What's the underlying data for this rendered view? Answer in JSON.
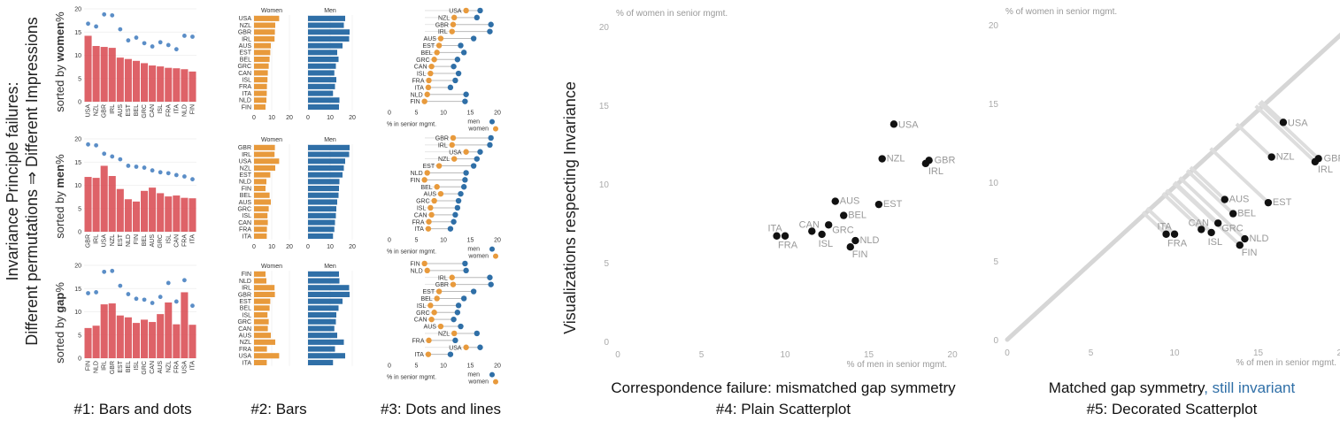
{
  "left_title": {
    "line1": "Invariance Principle failures:",
    "line2": "Different permutations ⇒ Different Impressions"
  },
  "row_labels": [
    {
      "prefix": "sorted by ",
      "bold": "women",
      "suffix": "%"
    },
    {
      "prefix": "sorted by ",
      "bold": "men",
      "suffix": "%"
    },
    {
      "prefix": "sorted by ",
      "bold": "gap",
      "suffix": "%"
    }
  ],
  "scatter_ylabel": "Visualizations respecting Invariance",
  "captions": {
    "c1": "#1: Bars and dots",
    "c2": "#2: Bars",
    "c3": "#3: Dots and lines",
    "c4_top": "Correspondence failure: mismatched gap symmetry",
    "c4_bottom": "#4: Plain Scatterplot",
    "c5_top_a": "Matched gap symmetry",
    "c5_top_b": ", still invariant",
    "c5_bottom": "#5: Decorated Scatterplot"
  },
  "small_labels": {
    "women": "Women",
    "men": "Men",
    "senior": "% in senior mgmt.",
    "legend_men": "men",
    "legend_women": "women"
  },
  "colors": {
    "women_bar": "#e89a3c",
    "men_bar": "#2f6fa7",
    "red_bar": "#d8474e",
    "blue_dot": "#5b8ec7",
    "scatter_point": "#111111",
    "diagonal": "#d6d6d6"
  },
  "chart_data": [
    {
      "type": "bar",
      "id": "bars-and-dots",
      "title": "#1: Bars and dots",
      "ylim": [
        0,
        20
      ],
      "yticks": [
        0,
        5,
        10,
        15,
        20
      ],
      "panels": [
        {
          "sort": "women",
          "categories": [
            "USA",
            "NZL",
            "GBR",
            "IRL",
            "AUS",
            "EST",
            "BEL",
            "GRC",
            "CAN",
            "ISL",
            "FRA",
            "ITA",
            "NLD",
            "FIN"
          ],
          "women": [
            14.2,
            12.0,
            11.8,
            11.6,
            9.5,
            9.2,
            8.8,
            8.3,
            7.8,
            7.6,
            7.3,
            7.2,
            7.0,
            6.5
          ],
          "men": [
            16.8,
            16.2,
            18.8,
            18.6,
            15.6,
            13.2,
            13.8,
            12.6,
            11.9,
            12.8,
            12.2,
            11.3,
            14.2,
            14.0
          ]
        },
        {
          "sort": "men",
          "categories": [
            "GBR",
            "IRL",
            "USA",
            "NZL",
            "EST",
            "NLD",
            "FIN",
            "BEL",
            "AUS",
            "GRC",
            "ISL",
            "CAN",
            "FRA",
            "ITA"
          ],
          "women": [
            11.8,
            11.6,
            14.2,
            12.0,
            9.2,
            7.0,
            6.5,
            8.8,
            9.5,
            8.3,
            7.6,
            7.8,
            7.3,
            7.2
          ],
          "men": [
            18.8,
            18.6,
            16.8,
            16.2,
            15.6,
            14.2,
            14.0,
            13.8,
            13.2,
            12.8,
            12.6,
            12.2,
            11.9,
            11.3
          ]
        },
        {
          "sort": "gap",
          "categories": [
            "FIN",
            "NLD",
            "IRL",
            "GBR",
            "EST",
            "BEL",
            "ISL",
            "GRC",
            "CAN",
            "AUS",
            "NZL",
            "FRA",
            "USA",
            "ITA"
          ],
          "women": [
            6.5,
            7.0,
            11.6,
            11.8,
            9.2,
            8.8,
            7.6,
            8.3,
            7.8,
            9.5,
            12.0,
            7.3,
            14.2,
            7.2
          ],
          "men": [
            14.0,
            14.2,
            18.6,
            18.8,
            15.6,
            13.8,
            12.8,
            12.6,
            11.9,
            13.2,
            16.2,
            12.2,
            16.8,
            11.3
          ]
        }
      ]
    },
    {
      "type": "bar",
      "id": "bars",
      "title": "#2: Bars",
      "xlim_women": [
        0,
        20
      ],
      "xlim_men": [
        0,
        20
      ],
      "xticks": [
        0,
        10,
        20
      ],
      "series": [
        {
          "name": "Women"
        },
        {
          "name": "Men"
        }
      ],
      "panels": [
        {
          "categories": [
            "USA",
            "NZL",
            "GBR",
            "IRL",
            "AUS",
            "EST",
            "BEL",
            "GRC",
            "CAN",
            "ISL",
            "FRA",
            "ITA",
            "NLD",
            "FIN"
          ],
          "women": [
            14.2,
            12.0,
            11.8,
            11.6,
            9.5,
            9.2,
            8.8,
            8.3,
            7.8,
            7.6,
            7.3,
            7.2,
            7.0,
            6.5
          ],
          "men": [
            16.8,
            16.2,
            18.8,
            18.6,
            15.6,
            13.2,
            13.8,
            12.6,
            11.9,
            12.8,
            12.2,
            11.3,
            14.2,
            14.0
          ]
        },
        {
          "categories": [
            "GBR",
            "IRL",
            "USA",
            "NZL",
            "EST",
            "NLD",
            "FIN",
            "BEL",
            "AUS",
            "GRC",
            "ISL",
            "CAN",
            "FRA",
            "ITA"
          ],
          "women": [
            11.8,
            11.6,
            14.2,
            12.0,
            9.2,
            7.0,
            6.5,
            8.8,
            9.5,
            8.3,
            7.6,
            7.8,
            7.3,
            7.2
          ],
          "men": [
            18.8,
            18.6,
            16.8,
            16.2,
            15.6,
            14.2,
            14.0,
            13.8,
            13.2,
            12.8,
            12.6,
            12.2,
            11.9,
            11.3
          ]
        },
        {
          "categories": [
            "FIN",
            "NLD",
            "IRL",
            "GBR",
            "EST",
            "BEL",
            "ISL",
            "GRC",
            "CAN",
            "AUS",
            "NZL",
            "FRA",
            "USA",
            "ITA"
          ],
          "women": [
            6.5,
            7.0,
            11.6,
            11.8,
            9.2,
            8.8,
            7.6,
            8.3,
            7.8,
            9.5,
            12.0,
            7.3,
            14.2,
            7.2
          ],
          "men": [
            14.0,
            14.2,
            18.6,
            18.8,
            15.6,
            13.8,
            12.8,
            12.6,
            11.9,
            13.2,
            16.2,
            12.2,
            16.8,
            11.3
          ]
        }
      ]
    },
    {
      "type": "scatter",
      "id": "dots-and-lines",
      "title": "#3: Dots and lines",
      "xlim": [
        0,
        20
      ],
      "xticks": [
        0,
        5,
        10,
        15,
        20
      ],
      "xlabel": "% in senior mgmt.",
      "series": [
        {
          "name": "men"
        },
        {
          "name": "women"
        }
      ],
      "panels": [
        {
          "categories": [
            "USA",
            "NZL",
            "GBR",
            "IRL",
            "AUS",
            "EST",
            "BEL",
            "GRC",
            "CAN",
            "ISL",
            "FRA",
            "ITA",
            "NLD",
            "FIN"
          ],
          "women": [
            14.2,
            12.0,
            11.8,
            11.6,
            9.5,
            9.2,
            8.8,
            8.3,
            7.8,
            7.6,
            7.3,
            7.2,
            7.0,
            6.5
          ],
          "men": [
            16.8,
            16.2,
            18.8,
            18.6,
            15.6,
            13.2,
            13.8,
            12.6,
            11.9,
            12.8,
            12.2,
            11.3,
            14.2,
            14.0
          ]
        },
        {
          "categories": [
            "GBR",
            "IRL",
            "USA",
            "NZL",
            "EST",
            "NLD",
            "FIN",
            "BEL",
            "AUS",
            "GRC",
            "ISL",
            "CAN",
            "FRA",
            "ITA"
          ],
          "women": [
            11.8,
            11.6,
            14.2,
            12.0,
            9.2,
            7.0,
            6.5,
            8.8,
            9.5,
            8.3,
            7.6,
            7.8,
            7.3,
            7.2
          ],
          "men": [
            18.8,
            18.6,
            16.8,
            16.2,
            15.6,
            14.2,
            14.0,
            13.8,
            13.2,
            12.8,
            12.6,
            12.2,
            11.9,
            11.3
          ]
        },
        {
          "categories": [
            "FIN",
            "NLD",
            "IRL",
            "GBR",
            "EST",
            "BEL",
            "ISL",
            "GRC",
            "CAN",
            "AUS",
            "NZL",
            "FRA",
            "USA",
            "ITA"
          ],
          "women": [
            6.5,
            7.0,
            11.6,
            11.8,
            9.2,
            8.8,
            7.6,
            8.3,
            7.8,
            9.5,
            12.0,
            7.3,
            14.2,
            7.2
          ],
          "men": [
            14.0,
            14.2,
            18.6,
            18.8,
            15.6,
            13.8,
            12.8,
            12.6,
            11.9,
            13.2,
            16.2,
            12.2,
            16.8,
            11.3
          ]
        }
      ]
    },
    {
      "type": "scatter",
      "id": "plain-scatterplot",
      "title": "#4: Plain Scatterplot",
      "xlabel": "% of men in senior mgmt.",
      "ylabel": "% of women in senior mgmt.",
      "xlim": [
        0,
        21
      ],
      "ylim": [
        0,
        20
      ],
      "xticks": [
        0,
        5,
        10,
        15,
        20
      ],
      "yticks": [
        0,
        5,
        10,
        15,
        20
      ],
      "points": [
        {
          "label": "USA",
          "x": 16.5,
          "y": 13.8
        },
        {
          "label": "NZL",
          "x": 15.8,
          "y": 11.6
        },
        {
          "label": "GBR",
          "x": 18.6,
          "y": 11.5
        },
        {
          "label": "IRL",
          "x": 18.4,
          "y": 11.3
        },
        {
          "label": "AUS",
          "x": 13.0,
          "y": 8.9
        },
        {
          "label": "EST",
          "x": 15.6,
          "y": 8.7
        },
        {
          "label": "BEL",
          "x": 13.5,
          "y": 8.0
        },
        {
          "label": "GRC",
          "x": 12.6,
          "y": 7.4
        },
        {
          "label": "CAN",
          "x": 11.6,
          "y": 7.0
        },
        {
          "label": "ISL",
          "x": 12.2,
          "y": 6.8
        },
        {
          "label": "ITA",
          "x": 9.5,
          "y": 6.7
        },
        {
          "label": "FRA",
          "x": 10.0,
          "y": 6.7
        },
        {
          "label": "NLD",
          "x": 14.2,
          "y": 6.4
        },
        {
          "label": "FIN",
          "x": 13.9,
          "y": 6.0
        }
      ]
    },
    {
      "type": "scatter",
      "id": "decorated-scatterplot",
      "title": "#5: Decorated Scatterplot",
      "xlabel": "% of men in senior mgmt.",
      "ylabel": "% of women in senior mgmt.",
      "xlim": [
        0,
        21
      ],
      "ylim": [
        0,
        20
      ],
      "xticks": [
        0,
        5,
        10,
        15,
        20
      ],
      "yticks": [
        0,
        5,
        10,
        15,
        20
      ],
      "diagonal": true,
      "points": [
        {
          "label": "USA",
          "x": 16.5,
          "y": 13.8
        },
        {
          "label": "NZL",
          "x": 15.8,
          "y": 11.6
        },
        {
          "label": "GBR",
          "x": 18.6,
          "y": 11.5
        },
        {
          "label": "IRL",
          "x": 18.4,
          "y": 11.3
        },
        {
          "label": "AUS",
          "x": 13.0,
          "y": 8.9
        },
        {
          "label": "EST",
          "x": 15.6,
          "y": 8.7
        },
        {
          "label": "BEL",
          "x": 13.5,
          "y": 8.0
        },
        {
          "label": "GRC",
          "x": 12.6,
          "y": 7.4
        },
        {
          "label": "CAN",
          "x": 11.6,
          "y": 7.0
        },
        {
          "label": "ISL",
          "x": 12.2,
          "y": 6.8
        },
        {
          "label": "ITA",
          "x": 9.5,
          "y": 6.7
        },
        {
          "label": "FRA",
          "x": 10.0,
          "y": 6.7
        },
        {
          "label": "NLD",
          "x": 14.2,
          "y": 6.4
        },
        {
          "label": "FIN",
          "x": 13.9,
          "y": 6.0
        }
      ]
    }
  ]
}
